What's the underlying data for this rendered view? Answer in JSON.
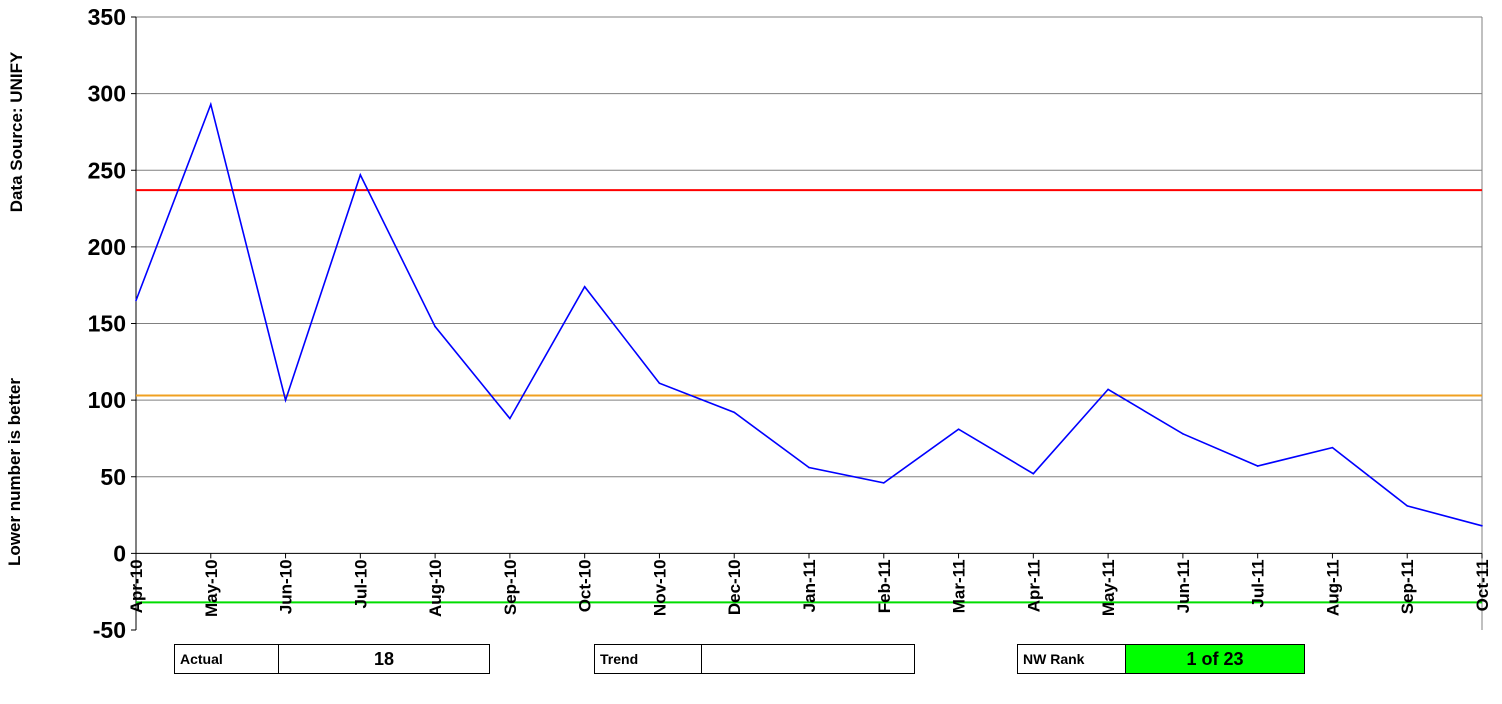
{
  "y_labels": {
    "upper": "Data Source: UNIFY",
    "lower": "Lower number is better"
  },
  "chart_data": {
    "type": "line",
    "x": [
      "Apr-10",
      "May-10",
      "Jun-10",
      "Jul-10",
      "Aug-10",
      "Sep-10",
      "Oct-10",
      "Nov-10",
      "Dec-10",
      "Jan-11",
      "Feb-11",
      "Mar-11",
      "Apr-11",
      "May-11",
      "Jun-11",
      "Jul-11",
      "Aug-11",
      "Sep-11",
      "Oct-11"
    ],
    "series": [
      {
        "values": [
          165,
          293,
          100,
          247,
          148,
          88,
          174,
          111,
          92,
          56,
          46,
          81,
          52,
          107,
          78,
          57,
          69,
          31,
          18
        ],
        "color": "#0000ff"
      }
    ],
    "reference_lines": [
      {
        "value": 237,
        "color": "#ff0000"
      },
      {
        "value": 103,
        "color": "#f0a020"
      },
      {
        "value": -32,
        "color": "#00dd00"
      }
    ],
    "ylim": [
      -50,
      350
    ],
    "yticks": [
      -50,
      0,
      50,
      100,
      150,
      200,
      250,
      300,
      350
    ],
    "grid": true
  },
  "summary": {
    "actual_label": "Actual",
    "actual_value": "18",
    "trend_label": "Trend",
    "trend_value": "",
    "rank_label": "NW Rank",
    "rank_value": "1 of 23",
    "rank_color": "#00ff00"
  }
}
